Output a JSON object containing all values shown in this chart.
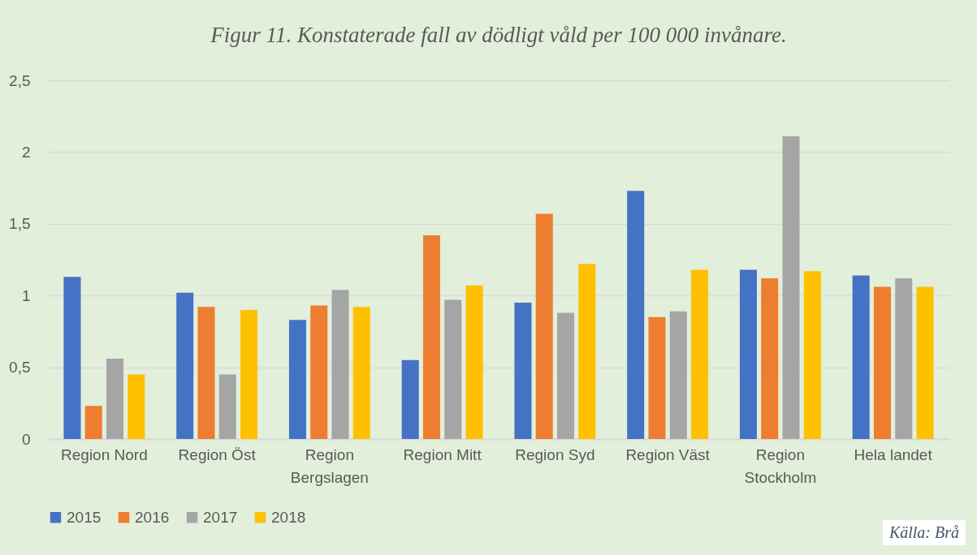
{
  "chart_data": {
    "type": "bar",
    "title": "Figur 11. Konstaterade fall av dödligt våld per 100 000 invånare.",
    "categories": [
      "Region Nord",
      "Region Öst",
      "Region Bergslagen",
      "Region Mitt",
      "Region Syd",
      "Region Väst",
      "Region Stockholm",
      "Hela landet"
    ],
    "series": [
      {
        "name": "2015",
        "color": "#4472c4",
        "values": [
          1.13,
          1.02,
          0.83,
          0.55,
          0.95,
          1.73,
          1.18,
          1.14
        ]
      },
      {
        "name": "2016",
        "color": "#ed7d31",
        "values": [
          0.23,
          0.92,
          0.93,
          1.42,
          1.57,
          0.85,
          1.12,
          1.06
        ]
      },
      {
        "name": "2017",
        "color": "#a5a5a5",
        "values": [
          0.56,
          0.45,
          1.04,
          0.97,
          0.88,
          0.89,
          2.11,
          1.12
        ]
      },
      {
        "name": "2018",
        "color": "#ffc000",
        "values": [
          0.45,
          0.9,
          0.92,
          1.07,
          1.22,
          1.18,
          1.17,
          1.06
        ]
      }
    ],
    "ylim": [
      0,
      2.5
    ],
    "yticks": [
      0,
      {
        "value": 0.5,
        "label": "0,5"
      },
      1,
      {
        "value": 1.5,
        "label": "1,5"
      },
      2,
      {
        "value": 2.5,
        "label": "2,5"
      }
    ],
    "grid": "y",
    "legend": "bottom",
    "annotations": [
      "Källa: Brå"
    ]
  }
}
